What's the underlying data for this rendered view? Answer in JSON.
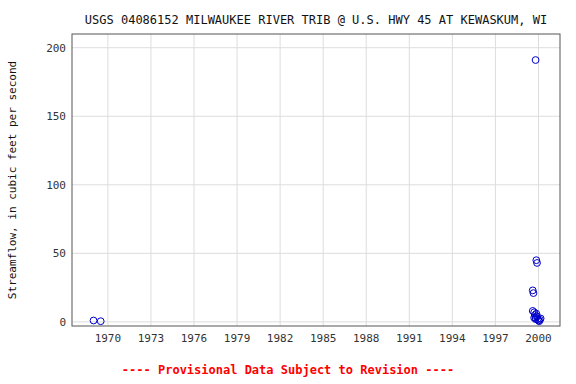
{
  "chart_data": {
    "type": "scatter",
    "title": "USGS 04086152 MILWAUKEE RIVER TRIB @ U.S. HWY 45 AT KEWASKUM, WI",
    "y_label": "Streamflow, in cubic feet per second",
    "annotations": [
      {
        "text": "---- Provisional Data Subject to Revision ----",
        "color": "#ff0000"
      }
    ],
    "x": [
      1969.0,
      1969.5,
      1999.8,
      1999.85,
      1999.9,
      1999.6,
      1999.65,
      1999.7,
      1999.75,
      1999.8,
      1999.85,
      1999.9,
      1999.95,
      2000.0,
      2000.05,
      2000.1,
      2000.15,
      1999.6,
      1999.7,
      1999.8
    ],
    "values": [
      1,
      0.5,
      191,
      45,
      43,
      23,
      21,
      7,
      5,
      3,
      6,
      4,
      2,
      1,
      0.5,
      1.5,
      2.5,
      8,
      3,
      2
    ],
    "color": "#0000CC",
    "marker": "open-circle",
    "xlim": [
      1967.5,
      2001.5
    ],
    "ylim": [
      -3,
      210
    ],
    "xticks": [
      1970,
      1973,
      1976,
      1979,
      1982,
      1985,
      1988,
      1991,
      1994,
      1997,
      2000
    ],
    "yticks": [
      0,
      50,
      100,
      150,
      200
    ],
    "grid": true
  }
}
